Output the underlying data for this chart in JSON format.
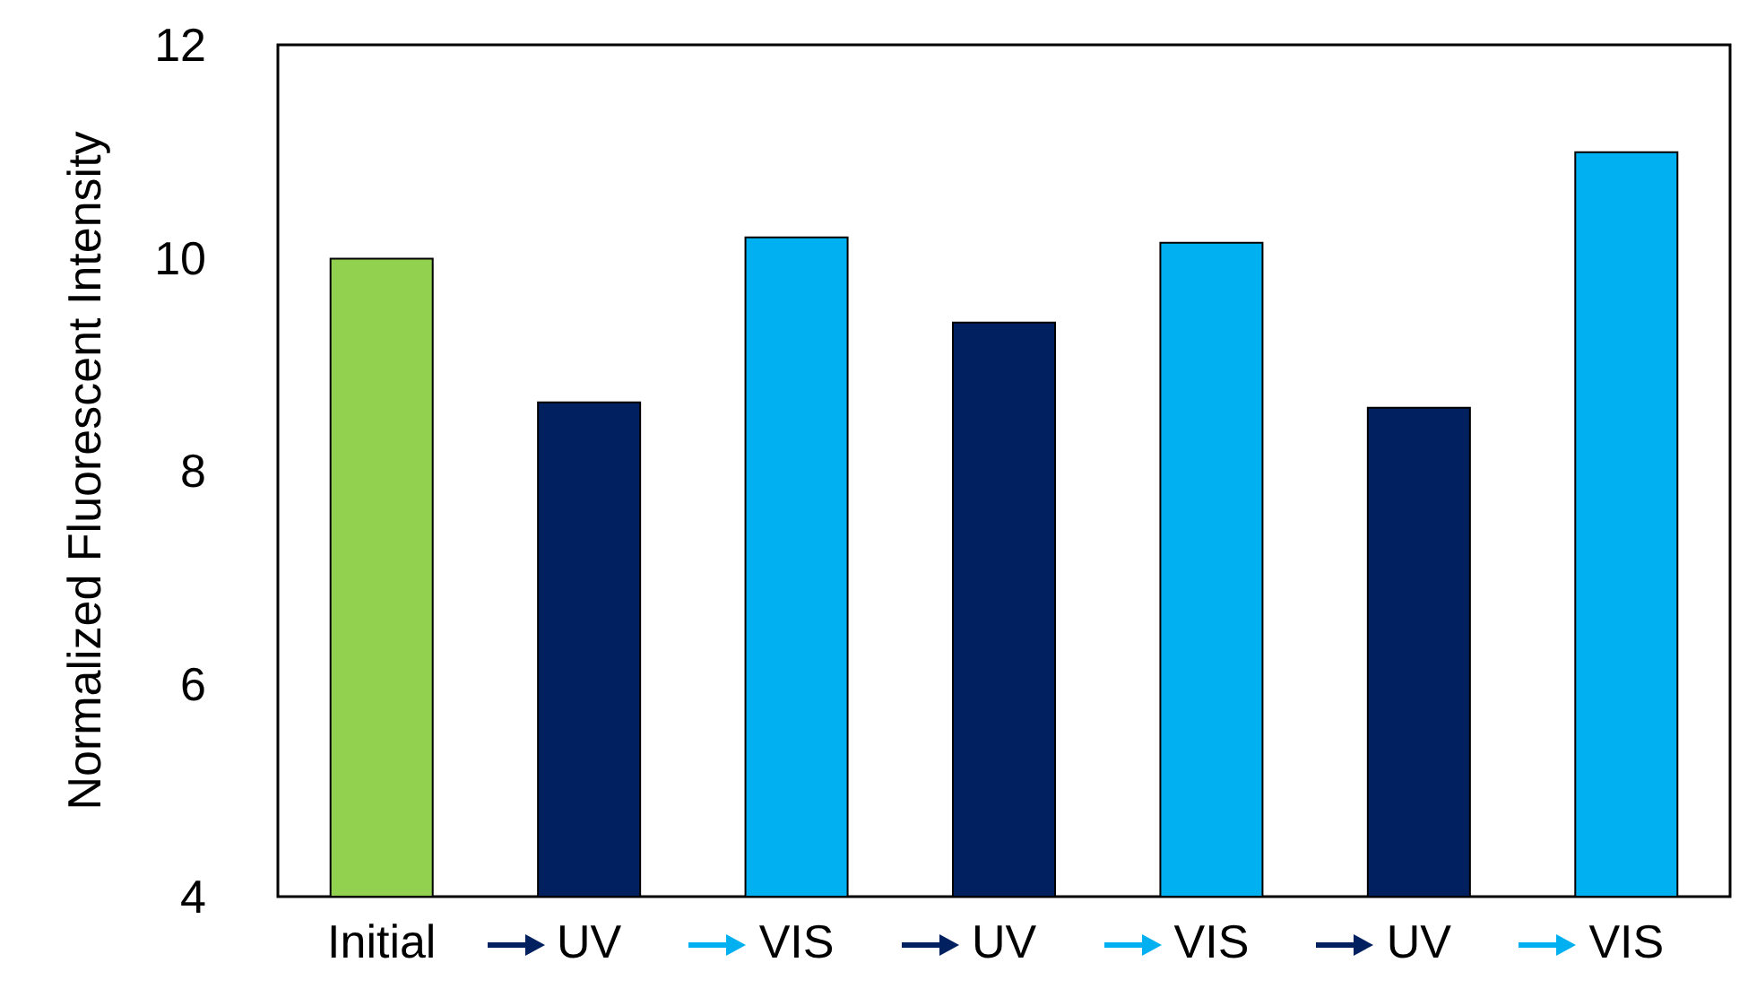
{
  "chart_data": {
    "type": "bar",
    "ylabel": "Normalized Fluorescent Intensity",
    "categories": [
      "Initial",
      "UV",
      "VIS",
      "UV",
      "VIS",
      "UV",
      "VIS"
    ],
    "values": [
      10.0,
      8.65,
      10.2,
      9.4,
      10.15,
      8.6,
      11.0
    ],
    "colors": [
      "#92d050",
      "#002060",
      "#00b0f0",
      "#002060",
      "#00b0f0",
      "#002060",
      "#00b0f0"
    ],
    "ylim": [
      4,
      12
    ],
    "yticks": [
      4,
      6,
      8,
      10,
      12
    ]
  }
}
